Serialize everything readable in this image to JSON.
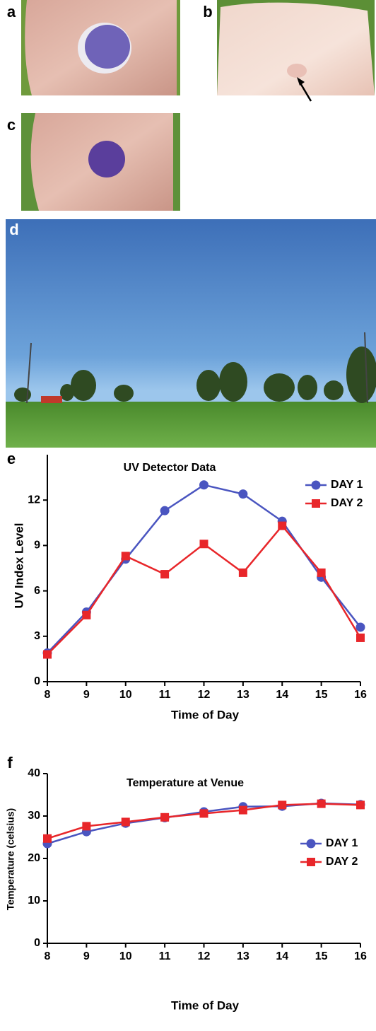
{
  "photo_labels": [
    "a",
    "b",
    "c",
    "d"
  ],
  "chart_data": [
    {
      "type": "line",
      "panel": "e",
      "title": "UV Detector Data",
      "xlabel": "Time of Day",
      "ylabel": "UV Index Level",
      "x": [
        8,
        9,
        10,
        11,
        12,
        13,
        14,
        15,
        16
      ],
      "series": [
        {
          "name": "DAY 1",
          "color": "#4a55c0",
          "marker": "circle",
          "values": [
            1.9,
            4.6,
            8.1,
            11.3,
            13.0,
            12.4,
            10.6,
            6.9,
            3.6
          ]
        },
        {
          "name": "DAY 2",
          "color": "#e8262a",
          "marker": "square",
          "values": [
            1.8,
            4.4,
            8.3,
            7.1,
            9.1,
            7.2,
            10.3,
            7.2,
            2.9
          ]
        }
      ],
      "xlim": [
        8,
        16
      ],
      "ylim": [
        0,
        15
      ],
      "xticks": [
        8,
        9,
        10,
        11,
        12,
        13,
        14,
        15,
        16
      ],
      "yticks": [
        0,
        3,
        6,
        9,
        12
      ],
      "legend": "upper right"
    },
    {
      "type": "line",
      "panel": "f",
      "title": "Temperature at Venue",
      "xlabel": "Time of Day",
      "ylabel": "Temperature (celsius)",
      "x": [
        8,
        9,
        10,
        11,
        12,
        13,
        14,
        15,
        16
      ],
      "series": [
        {
          "name": "DAY 1",
          "color": "#4a55c0",
          "marker": "circle",
          "values": [
            23.5,
            26.3,
            28.3,
            29.6,
            31.0,
            32.2,
            32.3,
            33.0,
            32.7
          ]
        },
        {
          "name": "DAY 2",
          "color": "#e8262a",
          "marker": "square",
          "values": [
            24.7,
            27.6,
            28.6,
            29.7,
            30.6,
            31.4,
            32.6,
            32.9,
            32.6
          ]
        }
      ],
      "xlim": [
        8,
        16
      ],
      "ylim": [
        0,
        40
      ],
      "xticks": [
        8,
        9,
        10,
        11,
        12,
        13,
        14,
        15,
        16
      ],
      "yticks": [
        0,
        10,
        20,
        30,
        40
      ],
      "legend": "center right"
    }
  ]
}
